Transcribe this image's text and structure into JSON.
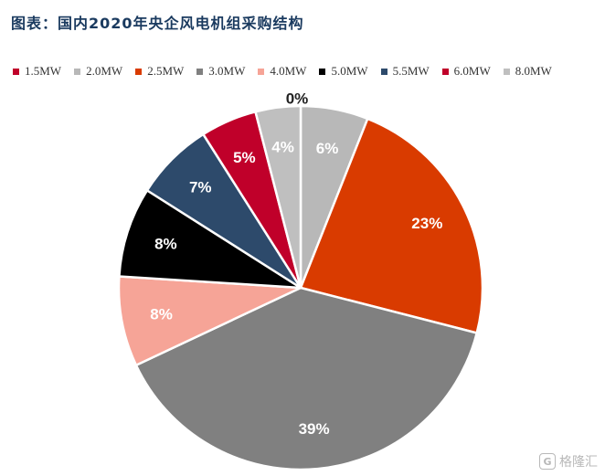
{
  "chart_data": {
    "type": "pie",
    "title": "图表：国内2020年央企风电机组采购结构",
    "legend_position": "top",
    "slices": [
      {
        "label": "1.5MW",
        "value": 0,
        "value_label": "",
        "color": "#c0002a"
      },
      {
        "label": "2.0MW",
        "value": 6,
        "value_label": "6%",
        "color": "#b8b8b8"
      },
      {
        "label": "2.5MW",
        "value": 23,
        "value_label": "23%",
        "color": "#d93b00"
      },
      {
        "label": "3.0MW",
        "value": 39,
        "value_label": "39%",
        "color": "#808080"
      },
      {
        "label": "4.0MW",
        "value": 8,
        "value_label": "8%",
        "color": "#f6a497"
      },
      {
        "label": "5.0MW",
        "value": 8,
        "value_label": "8%",
        "color": "#000000"
      },
      {
        "label": "5.5MW",
        "value": 7,
        "value_label": "7%",
        "color": "#2d4a6b"
      },
      {
        "label": "6.0MW",
        "value": 5,
        "value_label": "5%",
        "color": "#c0002a"
      },
      {
        "label": "8.0MW",
        "value": 4,
        "value_label": "4%",
        "color": "#bfbfbf"
      }
    ],
    "outside_label": "0%"
  },
  "watermark": {
    "logo_glyph": "G",
    "text": "格隆汇"
  }
}
